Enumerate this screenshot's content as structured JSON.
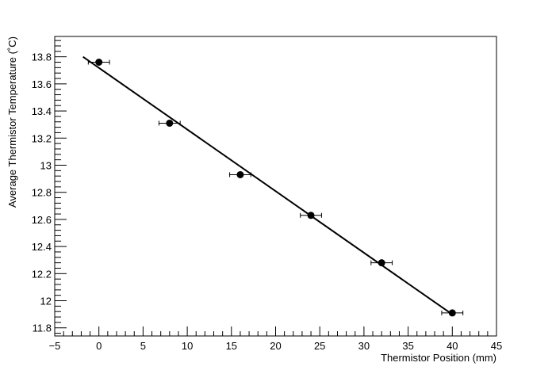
{
  "chart_data": {
    "type": "scatter",
    "title": "",
    "xlabel": "Thermistor Position (mm)",
    "ylabel": "Average Thermistor Temperature (˚C)",
    "xlim": [
      -5,
      45
    ],
    "ylim": [
      11.74,
      13.95
    ],
    "grid": false,
    "legend": "none",
    "x_ticks": [
      -5,
      0,
      5,
      10,
      15,
      20,
      25,
      30,
      35,
      40,
      45
    ],
    "x_tick_labels": [
      "−5",
      "0",
      "5",
      "10",
      "15",
      "20",
      "25",
      "30",
      "35",
      "40",
      "45"
    ],
    "y_ticks": [
      11.8,
      12.0,
      12.2,
      12.4,
      12.6,
      12.8,
      13.0,
      13.2,
      13.4,
      13.6,
      13.8
    ],
    "y_tick_labels": [
      "11.8",
      "12",
      "12.2",
      "12.4",
      "12.6",
      "12.8",
      "13",
      "13.2",
      "13.4",
      "13.6",
      "13.8"
    ],
    "series": [
      {
        "x": [
          0,
          8,
          16,
          24,
          32,
          40
        ],
        "y": [
          13.76,
          13.31,
          12.93,
          12.63,
          12.28,
          11.91
        ],
        "x_err": [
          1.2,
          1.2,
          1.2,
          1.2,
          1.2,
          1.2
        ],
        "marker": "circle",
        "color": "#000000"
      }
    ],
    "fit_line": {
      "x": [
        -1.8,
        40.2
      ],
      "y": [
        13.8,
        11.89
      ],
      "color": "#000000"
    }
  }
}
